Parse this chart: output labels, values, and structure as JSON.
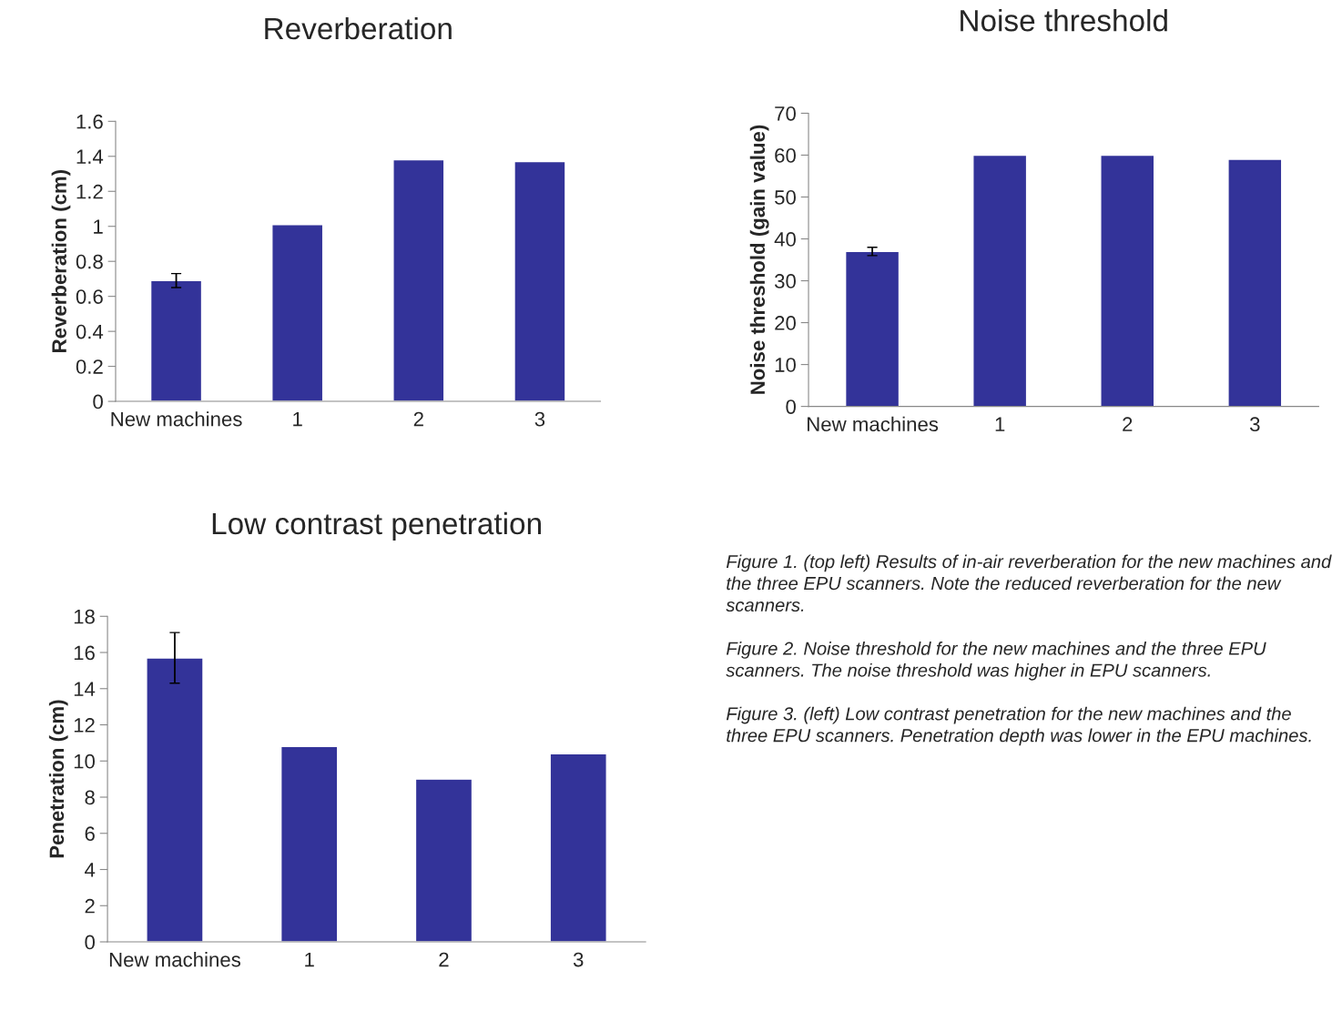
{
  "chart_data": [
    {
      "type": "bar",
      "title": "Reverberation",
      "ylabel": "Reverberation (cm)",
      "categories": [
        "New machines",
        "1",
        "2",
        "3"
      ],
      "values": [
        0.69,
        1.01,
        1.38,
        1.37
      ],
      "errors": [
        0.04,
        null,
        null,
        null
      ],
      "color": "#333399",
      "ylim": [
        0,
        1.6
      ],
      "yticks": [
        0,
        {
          "value": 0.2,
          "label": "0.2"
        },
        {
          "value": 0.4,
          "label": "0.4"
        },
        {
          "value": 0.6,
          "label": "0.6"
        },
        {
          "value": 0.8,
          "label": "0.8"
        },
        1,
        {
          "value": 1.2,
          "label": "1.2"
        },
        {
          "value": 1.4,
          "label": "1.4"
        },
        {
          "value": 1.6,
          "label": "1.6"
        }
      ],
      "grid": false,
      "legend": false
    },
    {
      "type": "bar",
      "title": "Noise threshold",
      "ylabel": "Noise threshold (gain value)",
      "categories": [
        "New machines",
        "1",
        "2",
        "3"
      ],
      "values": [
        37,
        60,
        60,
        59
      ],
      "errors": [
        1,
        null,
        null,
        null
      ],
      "color": "#333399",
      "ylim": [
        0,
        70
      ],
      "yticks": [
        0,
        10,
        20,
        30,
        40,
        50,
        60,
        70
      ],
      "grid": false,
      "legend": false
    },
    {
      "type": "bar",
      "title": "Low contrast penetration",
      "ylabel": "Penetration (cm)",
      "categories": [
        "New machines",
        "1",
        "2",
        "3"
      ],
      "values": [
        15.7,
        10.8,
        9.0,
        10.4
      ],
      "errors": [
        1.4,
        null,
        null,
        null
      ],
      "color": "#333399",
      "ylim": [
        0,
        18
      ],
      "yticks": [
        0,
        2,
        4,
        6,
        8,
        10,
        12,
        14,
        16,
        18
      ],
      "grid": false,
      "legend": false
    },
    {
      "type": "other",
      "annotations": [
        "Figure 1. (top left) Results of in-air reverberation for the new machines and the three EPU scanners. Note the reduced reverberation for the new scanners.",
        "Figure 2. Noise threshold for the new machines and the three EPU scanners. The noise threshold was higher in EPU scanners.",
        "Figure 3. (left) Low contrast penetration for the new machines and the three EPU scanners. Penetration depth was lower in the EPU machines."
      ]
    }
  ]
}
